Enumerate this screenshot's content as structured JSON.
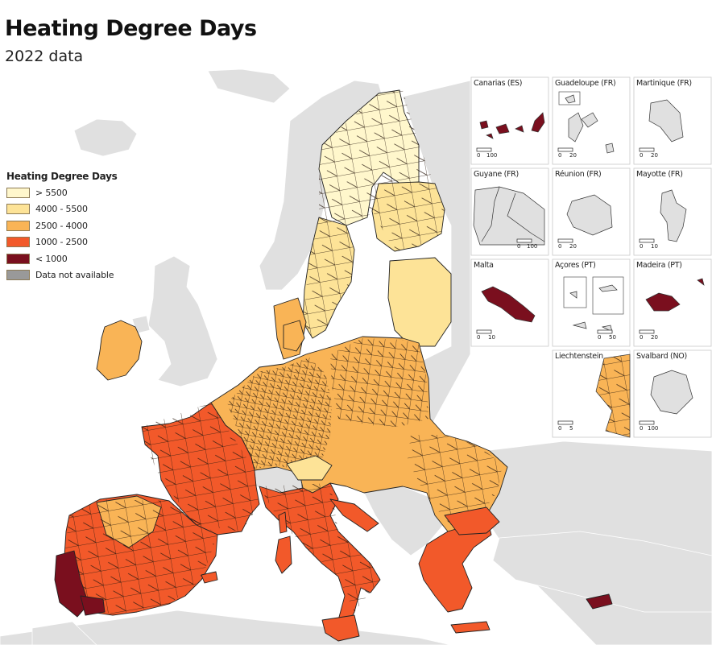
{
  "title": "Heating Degree Days",
  "subtitle": "2022 data",
  "colors": {
    "sea": "#ffffff",
    "non_eu_land": "#e0e0e0",
    "border": "#222222",
    "class_gt5500": "#fff7cc",
    "class_4000_5500": "#fde397",
    "class_2500_4000": "#f9b456",
    "class_1000_2500": "#f2592a",
    "class_lt1000": "#7a0f1e",
    "class_na": "#999999"
  },
  "legend": {
    "title": "Heating Degree Days",
    "items": [
      {
        "label": "> 5500",
        "color": "#fff7cc"
      },
      {
        "label": "4000 - 5500",
        "color": "#fde397"
      },
      {
        "label": "2500 - 4000",
        "color": "#f9b456"
      },
      {
        "label": "1000 - 2500",
        "color": "#f2592a"
      },
      {
        "label": "< 1000",
        "color": "#7a0f1e"
      },
      {
        "label": "Data not available",
        "color": "#999999"
      }
    ]
  },
  "insets": [
    {
      "name": "Canarias (ES)",
      "scale": [
        "0",
        "100"
      ],
      "fill": "#7a0f1e"
    },
    {
      "name": "Guadeloupe (FR)",
      "scale": [
        "0",
        "20"
      ],
      "fill": "#e0e0e0"
    },
    {
      "name": "Martinique (FR)",
      "scale": [
        "0",
        "20"
      ],
      "fill": "#e0e0e0"
    },
    {
      "name": "Guyane (FR)",
      "scale": [
        "0",
        "100"
      ],
      "fill": "#e0e0e0"
    },
    {
      "name": "Réunion (FR)",
      "scale": [
        "0",
        "20"
      ],
      "fill": "#e0e0e0"
    },
    {
      "name": "Mayotte (FR)",
      "scale": [
        "0",
        "10"
      ],
      "fill": "#e0e0e0"
    },
    {
      "name": "Malta",
      "scale": [
        "0",
        "10"
      ],
      "fill": "#7a0f1e"
    },
    {
      "name": "Açores (PT)",
      "scale": [
        "0",
        "50"
      ],
      "fill": "#e0e0e0"
    },
    {
      "name": "Madeira (PT)",
      "scale": [
        "0",
        "20"
      ],
      "fill": "#7a0f1e"
    },
    {
      "name": "Liechtenstein",
      "scale": [
        "0",
        "5"
      ],
      "fill": "#f9b456"
    },
    {
      "name": "Svalbard (NO)",
      "scale": [
        "0",
        "100"
      ],
      "fill": "#e0e0e0"
    }
  ]
}
